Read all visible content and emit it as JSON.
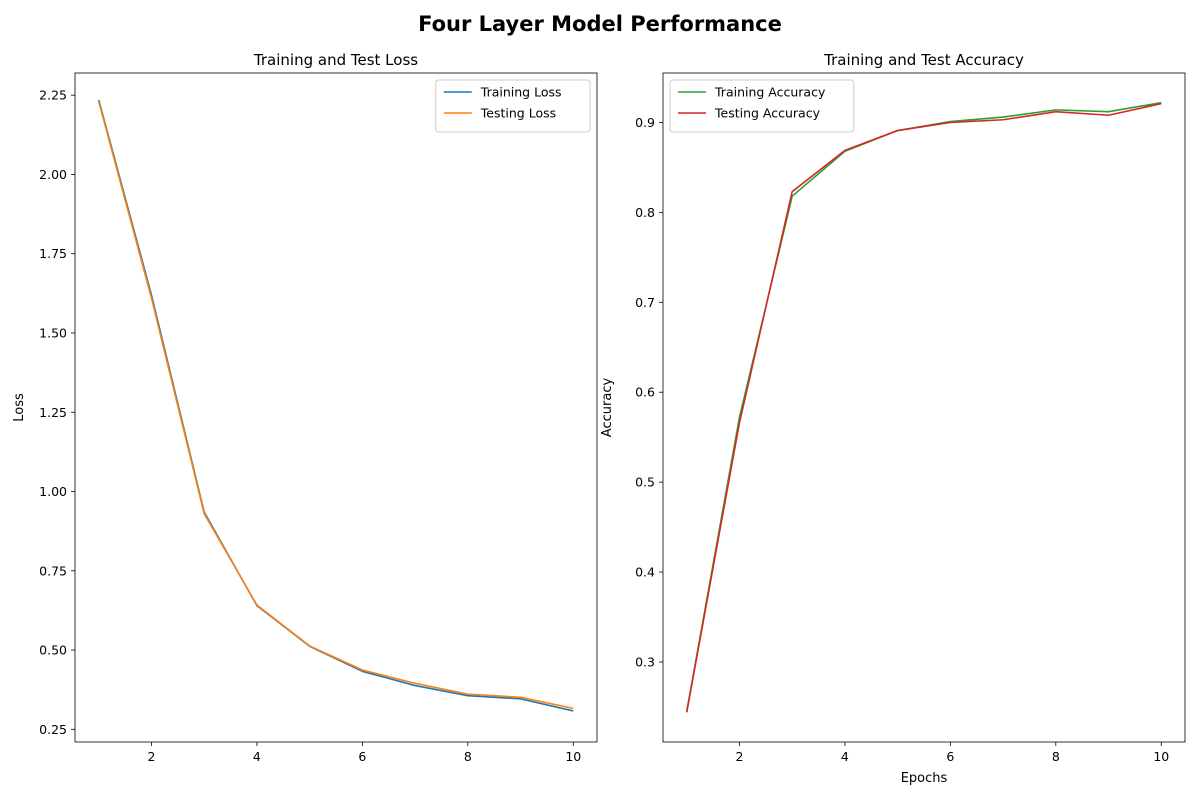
{
  "figure": {
    "title": "Four Layer Model Performance"
  },
  "chart_data": [
    {
      "type": "line",
      "title": "Training and Test Loss",
      "xlabel": "",
      "ylabel": "Loss",
      "x": [
        1,
        2,
        3,
        4,
        5,
        6,
        7,
        8,
        9,
        10
      ],
      "xlim": [
        0.55,
        10.45
      ],
      "ylim": [
        0.21,
        2.32
      ],
      "xticks": [
        2,
        4,
        6,
        8,
        10
      ],
      "xtick_labels": [
        "2",
        "4",
        "6",
        "8",
        "10"
      ],
      "yticks": [
        0.25,
        0.5,
        0.75,
        1.0,
        1.25,
        1.5,
        1.75,
        2.0,
        2.25
      ],
      "ytick_labels": [
        "0.25",
        "0.50",
        "0.75",
        "1.00",
        "1.25",
        "1.50",
        "1.75",
        "2.00",
        "2.25"
      ],
      "grid": false,
      "legend_position": "upper right",
      "series": [
        {
          "name": "Training Loss",
          "color": "#1f77b4",
          "values": [
            2.235,
            1.62,
            0.935,
            0.64,
            0.512,
            0.433,
            0.388,
            0.356,
            0.346,
            0.308
          ]
        },
        {
          "name": "Testing Loss",
          "color": "#ff7f0e",
          "values": [
            2.23,
            1.61,
            0.93,
            0.642,
            0.513,
            0.437,
            0.395,
            0.361,
            0.351,
            0.316
          ]
        }
      ]
    },
    {
      "type": "line",
      "title": "Training and Test Accuracy",
      "xlabel": "Epochs",
      "ylabel": "Accuracy",
      "x": [
        1,
        2,
        3,
        4,
        5,
        6,
        7,
        8,
        9,
        10
      ],
      "xlim": [
        0.55,
        10.45
      ],
      "ylim": [
        0.211,
        0.955
      ],
      "xticks": [
        2,
        4,
        6,
        8,
        10
      ],
      "xtick_labels": [
        "2",
        "4",
        "6",
        "8",
        "10"
      ],
      "yticks": [
        0.3,
        0.4,
        0.5,
        0.6,
        0.7,
        0.8,
        0.9
      ],
      "ytick_labels": [
        "0.3",
        "0.4",
        "0.5",
        "0.6",
        "0.7",
        "0.8",
        "0.9"
      ],
      "grid": false,
      "legend_position": "upper left",
      "series": [
        {
          "name": "Training Accuracy",
          "color": "#2ca02c",
          "values": [
            0.245,
            0.572,
            0.818,
            0.868,
            0.891,
            0.901,
            0.906,
            0.914,
            0.912,
            0.922
          ]
        },
        {
          "name": "Testing Accuracy",
          "color": "#d62728",
          "values": [
            0.244,
            0.566,
            0.823,
            0.869,
            0.891,
            0.9,
            0.903,
            0.912,
            0.908,
            0.921
          ]
        }
      ]
    }
  ]
}
